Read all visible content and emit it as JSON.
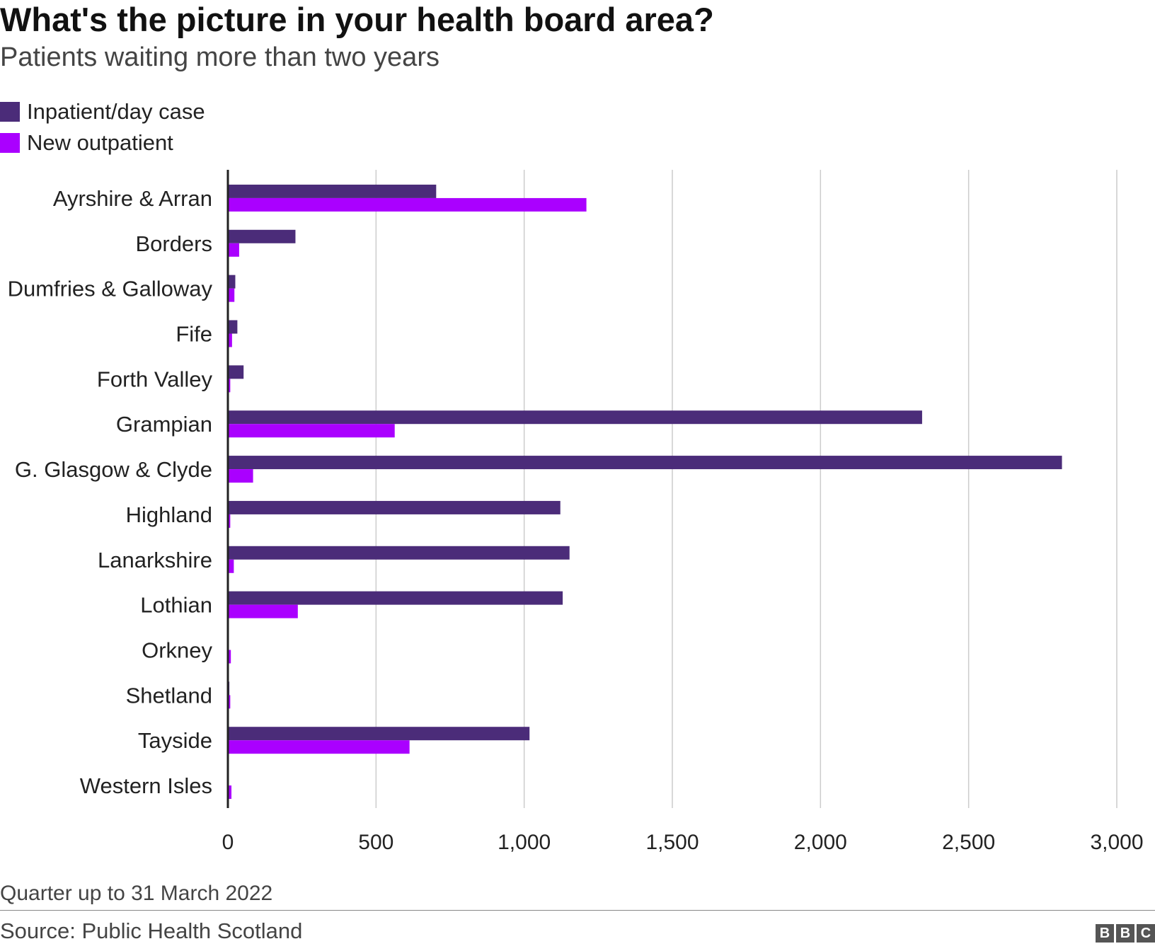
{
  "header": {
    "title": "What's the picture in your health board area?",
    "subtitle": "Patients waiting more than two years"
  },
  "legend": {
    "items": [
      {
        "label": "Inpatient/day case",
        "color": "#4b2c79"
      },
      {
        "label": "New outpatient",
        "color": "#aa00ff"
      }
    ]
  },
  "footer": {
    "note": "Quarter up to 31 March 2022",
    "source": "Source: Public Health Scotland",
    "logo": "BBC",
    "logo_letters": [
      "B",
      "B",
      "C"
    ]
  },
  "chart_data": {
    "type": "bar",
    "orientation": "horizontal",
    "title": "What's the picture in your health board area?",
    "subtitle": "Patients waiting more than two years",
    "categories": [
      "Ayrshire & Arran",
      "Borders",
      "Dumfries & Galloway",
      "Fife",
      "Forth Valley",
      "Grampian",
      "G. Glasgow & Clyde",
      "Highland",
      "Lanarkshire",
      "Lothian",
      "Orkney",
      "Shetland",
      "Tayside",
      "Western Isles"
    ],
    "series": [
      {
        "name": "Inpatient/day case",
        "color": "#4b2c79",
        "values": [
          703,
          228,
          25,
          32,
          53,
          2343,
          2815,
          1122,
          1153,
          1130,
          0,
          5,
          1018,
          0
        ]
      },
      {
        "name": "New outpatient",
        "color": "#aa00ff",
        "values": [
          1210,
          38,
          22,
          14,
          8,
          563,
          85,
          8,
          20,
          236,
          10,
          8,
          613,
          12
        ]
      }
    ],
    "xlim": [
      0,
      3000
    ],
    "xticks": [
      0,
      500,
      1000,
      1500,
      2000,
      2500,
      3000
    ],
    "xtick_labels": [
      "0",
      "500",
      "1,000",
      "1,500",
      "2,000",
      "2,500",
      "3,000"
    ],
    "grid": "vertical",
    "legend_position": "top-left"
  }
}
